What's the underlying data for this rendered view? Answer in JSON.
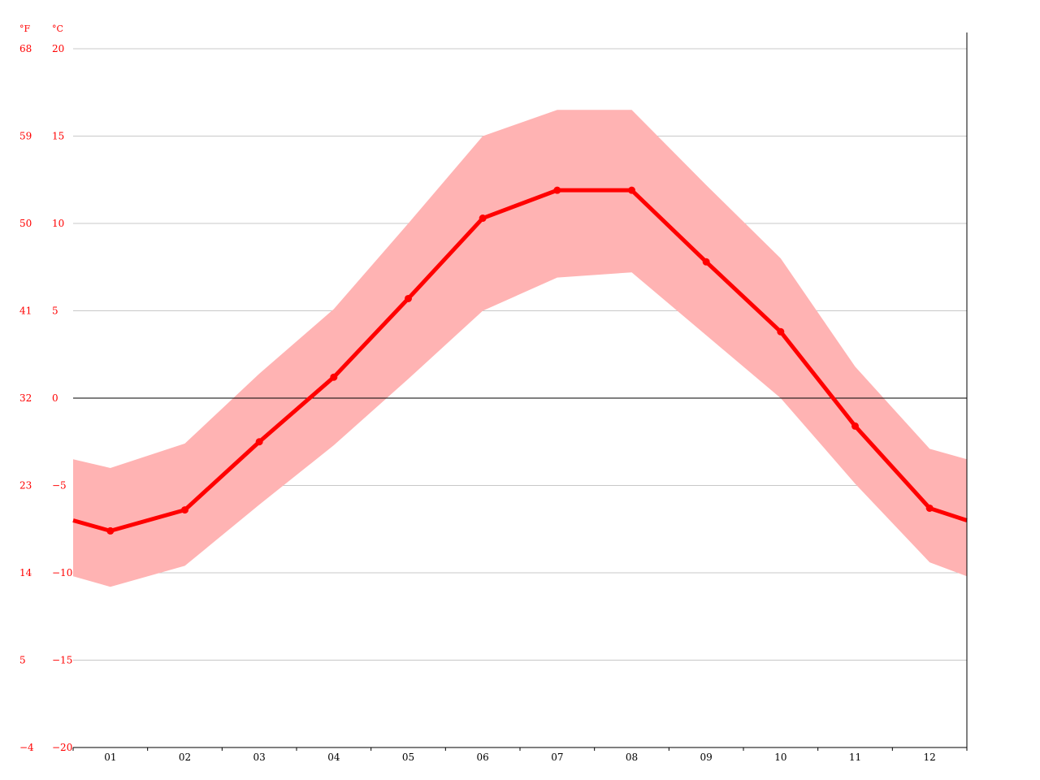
{
  "chart_data": {
    "type": "line",
    "units": {
      "fahrenheit": "°F",
      "celsius": "°C"
    },
    "categories": [
      "01",
      "02",
      "03",
      "04",
      "05",
      "06",
      "07",
      "08",
      "09",
      "10",
      "11",
      "12"
    ],
    "series": [
      {
        "values": [
          -7.6,
          -6.4,
          -2.5,
          1.2,
          5.7,
          10.3,
          11.9,
          11.9,
          7.8,
          3.8,
          -1.6,
          -6.3
        ]
      },
      {
        "values": [
          -4.0,
          -2.6,
          1.4,
          5.1,
          10.0,
          15.0,
          16.5,
          16.5,
          12.2,
          8.0,
          1.8,
          -2.9
        ]
      },
      {
        "values": [
          -10.8,
          -9.6,
          -6.1,
          -2.7,
          1.1,
          5.0,
          6.9,
          7.2,
          3.6,
          0.0,
          -4.9,
          -9.4
        ]
      }
    ],
    "wrap_value": {
      "avg": -7.0,
      "high": -3.5,
      "low": -10.2
    },
    "y_ticks_celsius": [
      "20",
      "15",
      "10",
      "5",
      "0",
      "−5",
      "−10",
      "−15",
      "−20"
    ],
    "y_ticks_fahrenheit": [
      "68",
      "59",
      "50",
      "41",
      "32",
      "23",
      "14",
      "5",
      "−4"
    ],
    "ylim": [
      -20,
      20
    ],
    "grid": true,
    "colors": {
      "line": "#ff0000",
      "band": "#ffb3b3",
      "grid": "#c8c8c8",
      "axis": "#000000",
      "label": "#ff0000"
    }
  }
}
